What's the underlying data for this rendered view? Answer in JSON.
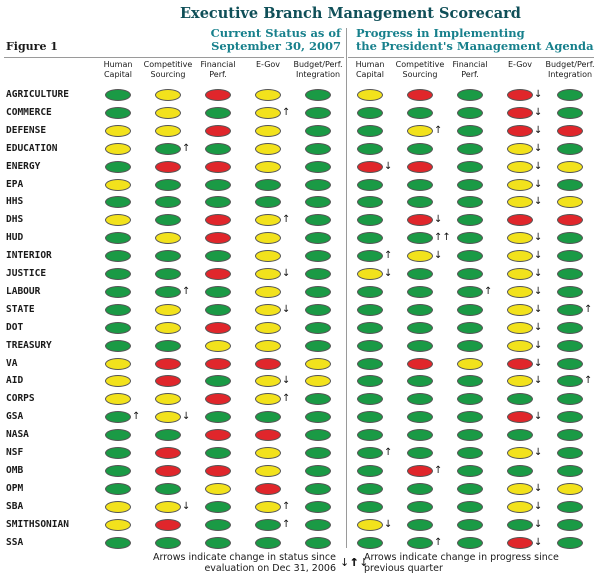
{
  "title": "Executive Branch Management Scorecard",
  "figure_label": "Figure 1",
  "section_left": [
    "Current Status as of",
    "September 30, 2007"
  ],
  "section_right": [
    "Progress in Implementing",
    "the President's Management Agenda"
  ],
  "columns": [
    [
      "Human",
      "Capital"
    ],
    [
      "Competitive",
      "Sourcing"
    ],
    [
      "Financial",
      "Perf."
    ],
    [
      "E-Gov",
      ""
    ],
    [
      "Budget/Perf.",
      "Integration"
    ]
  ],
  "footnote_left": [
    "Arrows indicate change in status since",
    "evaluation on Dec 31, 2006"
  ],
  "footnote_right": [
    "Arrows indicate change in progress since",
    "previous quarter"
  ],
  "footnote_left_arrows": "↓↑",
  "footnote_right_arrows": "↑↓",
  "colors": {
    "green": "#1a9a45",
    "yellow": "#f2e21c",
    "red": "#e0262b",
    "title": "#0f4f58",
    "heading": "#17808c"
  },
  "rows": [
    {
      "agency": "AGRICULTURE",
      "status": [
        "g",
        "y",
        "r",
        "y",
        "g"
      ],
      "status_arrows": [
        "",
        "",
        "",
        "",
        ""
      ],
      "progress": [
        "y",
        "r",
        "g",
        "r",
        "g"
      ],
      "progress_arrows": [
        "",
        "",
        "",
        "↓",
        ""
      ]
    },
    {
      "agency": "COMMERCE",
      "status": [
        "g",
        "y",
        "g",
        "y↑",
        "g"
      ],
      "status_arrows": [
        "",
        "",
        "",
        "↑",
        ""
      ],
      "progress": [
        "g",
        "g",
        "g",
        "r",
        "g"
      ],
      "progress_arrows": [
        "",
        "",
        "",
        "↓",
        ""
      ]
    },
    {
      "agency": "DEFENSE",
      "status": [
        "y",
        "y",
        "r",
        "y",
        "g"
      ],
      "status_arrows": [
        "",
        "",
        "",
        "",
        ""
      ],
      "progress": [
        "g",
        "y",
        "g",
        "r",
        "r"
      ],
      "progress_arrows": [
        "",
        "↑",
        "",
        "↓",
        ""
      ]
    },
    {
      "agency": "EDUCATION",
      "status": [
        "y",
        "g",
        "g",
        "y",
        "g"
      ],
      "status_arrows": [
        "",
        "↑",
        "",
        "",
        ""
      ],
      "progress": [
        "g",
        "g",
        "g",
        "y",
        "g"
      ],
      "progress_arrows": [
        "",
        "",
        "",
        "↓",
        ""
      ]
    },
    {
      "agency": "ENERGY",
      "status": [
        "g",
        "r",
        "r",
        "y",
        "g"
      ],
      "status_arrows": [
        "",
        "",
        "",
        "",
        ""
      ],
      "progress": [
        "r",
        "r",
        "g",
        "y",
        "y"
      ],
      "progress_arrows": [
        "↓",
        "",
        "",
        "↓",
        ""
      ]
    },
    {
      "agency": "EPA",
      "status": [
        "y",
        "g",
        "g",
        "g",
        "g"
      ],
      "status_arrows": [
        "",
        "",
        "",
        "",
        ""
      ],
      "progress": [
        "g",
        "g",
        "g",
        "y",
        "g"
      ],
      "progress_arrows": [
        "",
        "",
        "",
        "↓",
        ""
      ]
    },
    {
      "agency": "HHS",
      "status": [
        "g",
        "g",
        "g",
        "g",
        "g"
      ],
      "status_arrows": [
        "",
        "",
        "",
        "",
        ""
      ],
      "progress": [
        "g",
        "g",
        "g",
        "y",
        "y"
      ],
      "progress_arrows": [
        "",
        "",
        "",
        "↓",
        ""
      ]
    },
    {
      "agency": "DHS",
      "status": [
        "y",
        "g",
        "r",
        "y",
        "g"
      ],
      "status_arrows": [
        "",
        "",
        "",
        "↑",
        ""
      ],
      "progress": [
        "g",
        "r",
        "g",
        "r",
        "r"
      ],
      "progress_arrows": [
        "",
        "↓",
        "",
        "",
        ""
      ]
    },
    {
      "agency": "HUD",
      "status": [
        "g",
        "y",
        "r",
        "y",
        "g"
      ],
      "status_arrows": [
        "",
        "",
        "",
        "",
        ""
      ],
      "progress": [
        "g",
        "g",
        "g",
        "y",
        "g"
      ],
      "progress_arrows": [
        "",
        "↑↑",
        "",
        "↓",
        ""
      ]
    },
    {
      "agency": "INTERIOR",
      "status": [
        "g",
        "g",
        "g",
        "y",
        "g"
      ],
      "status_arrows": [
        "",
        "",
        "",
        "",
        ""
      ],
      "progress": [
        "g",
        "y",
        "g",
        "y",
        "g"
      ],
      "progress_arrows": [
        "↑",
        "↓",
        "",
        "↓",
        ""
      ]
    },
    {
      "agency": "JUSTICE",
      "status": [
        "g",
        "g",
        "r",
        "y",
        "g"
      ],
      "status_arrows": [
        "",
        "",
        "",
        "↓",
        ""
      ],
      "progress": [
        "y",
        "g",
        "g",
        "y",
        "g"
      ],
      "progress_arrows": [
        "↓",
        "",
        "",
        "↓",
        ""
      ]
    },
    {
      "agency": "LABOUR",
      "status": [
        "g",
        "g",
        "g",
        "y",
        "g"
      ],
      "status_arrows": [
        "",
        "↑",
        "",
        "",
        ""
      ],
      "progress": [
        "g",
        "g",
        "g",
        "y",
        "g"
      ],
      "progress_arrows": [
        "",
        "",
        "↑",
        "↓",
        ""
      ]
    },
    {
      "agency": "STATE",
      "status": [
        "g",
        "y",
        "g",
        "y",
        "g"
      ],
      "status_arrows": [
        "",
        "",
        "",
        "↓",
        ""
      ],
      "progress": [
        "g",
        "g",
        "g",
        "y",
        "g"
      ],
      "progress_arrows": [
        "",
        "",
        "",
        "↓",
        "↑"
      ]
    },
    {
      "agency": "DOT",
      "status": [
        "g",
        "y",
        "r",
        "y",
        "g"
      ],
      "status_arrows": [
        "",
        "",
        "",
        "",
        ""
      ],
      "progress": [
        "g",
        "g",
        "g",
        "y",
        "g"
      ],
      "progress_arrows": [
        "",
        "",
        "",
        "↓",
        ""
      ]
    },
    {
      "agency": "TREASURY",
      "status": [
        "g",
        "g",
        "y",
        "y",
        "g"
      ],
      "status_arrows": [
        "",
        "",
        "",
        "",
        ""
      ],
      "progress": [
        "g",
        "g",
        "g",
        "y",
        "g"
      ],
      "progress_arrows": [
        "",
        "",
        "",
        "↓",
        ""
      ]
    },
    {
      "agency": "VA",
      "status": [
        "y",
        "r",
        "r",
        "r",
        "y"
      ],
      "status_arrows": [
        "",
        "",
        "",
        "",
        ""
      ],
      "progress": [
        "g",
        "r",
        "y",
        "r",
        "g"
      ],
      "progress_arrows": [
        "",
        "",
        "",
        "↓",
        ""
      ]
    },
    {
      "agency": "AID",
      "status": [
        "y",
        "r",
        "g",
        "y",
        "y"
      ],
      "status_arrows": [
        "",
        "",
        "",
        "↓",
        ""
      ],
      "progress": [
        "g",
        "g",
        "g",
        "y",
        "g"
      ],
      "progress_arrows": [
        "",
        "",
        "",
        "↓",
        "↑"
      ]
    },
    {
      "agency": "CORPS",
      "status": [
        "y",
        "y",
        "r",
        "y",
        "g"
      ],
      "status_arrows": [
        "",
        "",
        "",
        "↑",
        ""
      ],
      "progress": [
        "g",
        "g",
        "g",
        "g",
        "g"
      ],
      "progress_arrows": [
        "",
        "",
        "",
        "",
        ""
      ]
    },
    {
      "agency": "GSA",
      "status": [
        "g",
        "y",
        "g",
        "g",
        "g"
      ],
      "status_arrows": [
        "↑",
        "↓",
        "",
        "",
        ""
      ],
      "progress": [
        "g",
        "g",
        "g",
        "r",
        "g"
      ],
      "progress_arrows": [
        "",
        "",
        "",
        "↓",
        ""
      ]
    },
    {
      "agency": "NASA",
      "status": [
        "g",
        "g",
        "r",
        "r",
        "g"
      ],
      "status_arrows": [
        "",
        "",
        "",
        "",
        ""
      ],
      "progress": [
        "g",
        "g",
        "g",
        "g",
        "g"
      ],
      "progress_arrows": [
        "",
        "",
        "",
        "",
        ""
      ]
    },
    {
      "agency": "NSF",
      "status": [
        "g",
        "r",
        "g",
        "y",
        "g"
      ],
      "status_arrows": [
        "",
        "",
        "",
        "",
        ""
      ],
      "progress": [
        "g",
        "g",
        "g",
        "y",
        "g"
      ],
      "progress_arrows": [
        "↑",
        "",
        "",
        "↓",
        ""
      ]
    },
    {
      "agency": "OMB",
      "status": [
        "g",
        "r",
        "r",
        "y",
        "g"
      ],
      "status_arrows": [
        "",
        "",
        "",
        "",
        ""
      ],
      "progress": [
        "g",
        "r",
        "g",
        "g",
        "g"
      ],
      "progress_arrows": [
        "",
        "↑",
        "",
        "",
        ""
      ]
    },
    {
      "agency": "OPM",
      "status": [
        "g",
        "g",
        "y",
        "r",
        "g"
      ],
      "status_arrows": [
        "",
        "",
        "",
        "",
        ""
      ],
      "progress": [
        "g",
        "g",
        "g",
        "y",
        "y"
      ],
      "progress_arrows": [
        "",
        "",
        "",
        "↓",
        ""
      ]
    },
    {
      "agency": "SBA",
      "status": [
        "y",
        "y",
        "g",
        "y",
        "g"
      ],
      "status_arrows": [
        "",
        "↓",
        "",
        "↑",
        ""
      ],
      "progress": [
        "g",
        "g",
        "g",
        "y",
        "g"
      ],
      "progress_arrows": [
        "",
        "",
        "",
        "↓",
        ""
      ]
    },
    {
      "agency": "SMITHSONIAN",
      "status": [
        "y",
        "r",
        "g",
        "g",
        "g"
      ],
      "status_arrows": [
        "",
        "",
        "",
        "↑",
        ""
      ],
      "progress": [
        "y",
        "g",
        "g",
        "g",
        "g"
      ],
      "progress_arrows": [
        "↓",
        "",
        "",
        "↓",
        ""
      ]
    },
    {
      "agency": "SSA",
      "status": [
        "g",
        "g",
        "g",
        "g",
        "g"
      ],
      "status_arrows": [
        "",
        "",
        "",
        "",
        ""
      ],
      "progress": [
        "g",
        "g",
        "g",
        "r",
        "g"
      ],
      "progress_arrows": [
        "",
        "↑",
        "",
        "↓",
        ""
      ]
    }
  ]
}
